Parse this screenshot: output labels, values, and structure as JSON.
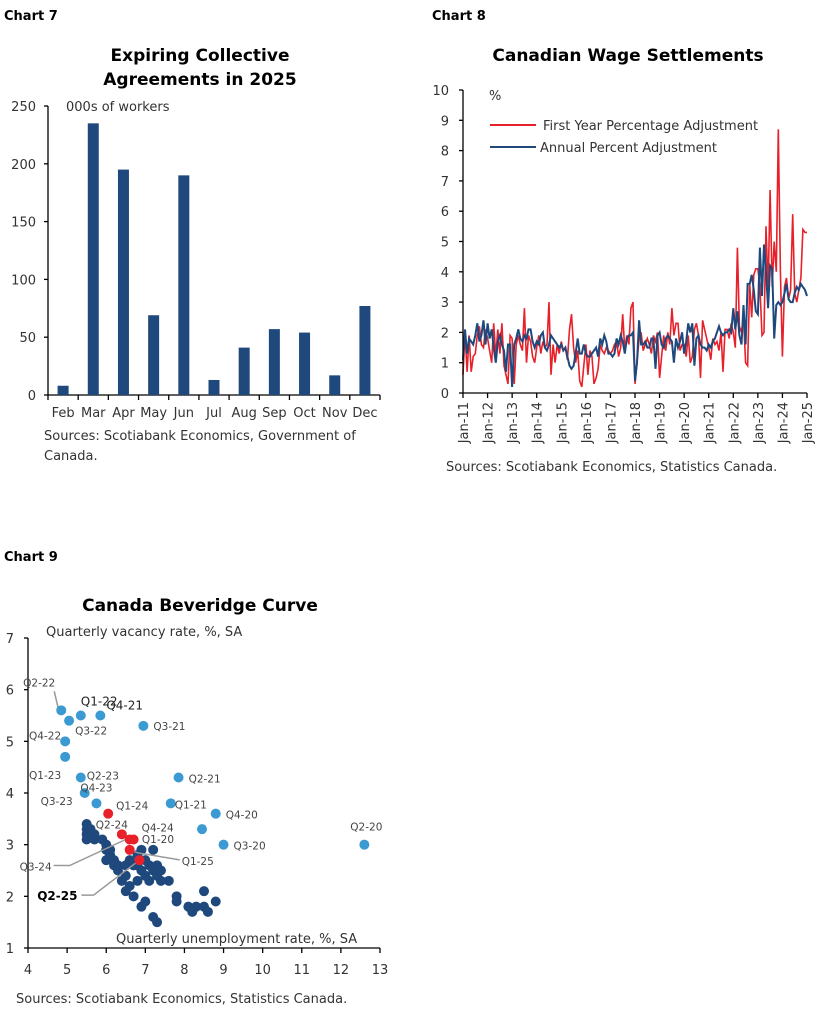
{
  "chart_data": [
    {
      "type": "bar",
      "label": "Chart 7",
      "title": [
        "Expiring Collective",
        "Agreements in 2025"
      ],
      "ylabel": "000s of workers",
      "categories": [
        "Feb",
        "Mar",
        "Apr",
        "May",
        "Jun",
        "Jul",
        "Aug",
        "Sep",
        "Oct",
        "Nov",
        "Dec"
      ],
      "values": [
        8,
        235,
        195,
        69,
        190,
        13,
        41,
        57,
        54,
        17,
        77
      ],
      "ylim": [
        0,
        250
      ],
      "yticks": [
        0,
        50,
        100,
        150,
        200,
        250
      ],
      "color": "#1f497d",
      "source": [
        "Sources: Scotiabank Economics, Government of",
        "Canada."
      ]
    },
    {
      "type": "line",
      "label": "Chart 8",
      "title": "Canadian Wage Settlements",
      "ylabel": "%",
      "ylim": [
        0,
        10
      ],
      "yticks": [
        0,
        1,
        2,
        3,
        4,
        5,
        6,
        7,
        8,
        9,
        10
      ],
      "x_start": "Jan-11",
      "x_frequency": "monthly",
      "xticks": [
        "Jan-11",
        "Jan-12",
        "Jan-13",
        "Jan-14",
        "Jan-15",
        "Jan-16",
        "Jan-17",
        "Jan-18",
        "Jan-19",
        "Jan-20",
        "Jan-21",
        "Jan-22",
        "Jan-23",
        "Jan-24",
        "Jan-25"
      ],
      "legend_position": "top-left",
      "series": [
        {
          "name": "First Year Percentage Adjustment",
          "color": "#e8202a",
          "values": [
            0.6,
            2.0,
            0.7,
            1.9,
            0.7,
            1.2,
            1.3,
            1.9,
            2.2,
            1.6,
            1.5,
            2.1,
            1.8,
            1.4,
            1.0,
            2.3,
            1.2,
            2.1,
            1.3,
            2.3,
            0.9,
            0.6,
            0.3,
            1.9,
            1.8,
            0.3,
            1.6,
            1.9,
            1.6,
            1.4,
            2.8,
            1.0,
            1.9,
            1.7,
            1.2,
            1.0,
            1.5,
            1.9,
            1.3,
            1.7,
            1.5,
            1.6,
            3.0,
            0.6,
            1.6,
            1.0,
            1.6,
            1.3,
            1.7,
            1.4,
            1.5,
            1.1,
            2.1,
            2.6,
            1.5,
            1.0,
            1.4,
            0.4,
            0.2,
            0.9,
            1.6,
            0.6,
            1.4,
            1.2,
            0.3,
            0.5,
            0.8,
            1.6,
            1.4,
            1.3,
            1.5,
            1.4,
            1.3,
            1.4,
            1.6,
            1.7,
            1.2,
            1.5,
            2.6,
            1.4,
            1.9,
            1.6,
            2.8,
            3.0,
            0.3,
            1.0,
            1.8,
            2.0,
            1.4,
            1.6,
            1.8,
            1.6,
            1.3,
            1.9,
            1.7,
            2.0,
            0.5,
            1.2,
            1.9,
            1.4,
            2.0,
            1.6,
            2.8,
            1.9,
            2.3,
            2.3,
            1.4,
            1.6,
            1.6,
            1.2,
            1.9,
            1.0,
            1.2,
            2.1,
            2.3,
            1.9,
            0.5,
            2.4,
            2.1,
            1.8,
            1.5,
            1.1,
            1.8,
            1.6,
            1.7,
            1.4,
            2.0,
            0.7,
            2.1,
            2.1,
            1.8,
            2.3,
            2.0,
            1.5,
            4.8,
            2.2,
            2.0,
            2.5,
            1.0,
            0.9,
            3.6,
            2.5,
            3.9,
            4.1,
            4.1,
            3.5,
            1.9,
            2.0,
            5.5,
            3.4,
            6.7,
            3.5,
            5.0,
            4.0,
            8.7,
            4.0,
            1.2,
            3.5,
            3.8,
            3.1,
            3.4,
            5.9,
            3.3,
            3.0,
            3.4,
            3.8,
            5.4,
            5.3,
            5.3
          ]
        },
        {
          "name": "Annual Percent Adjustment",
          "color": "#1f497d",
          "values": [
            1.1,
            2.1,
            1.3,
            1.8,
            1.7,
            1.6,
            1.9,
            2.3,
            1.7,
            1.9,
            2.4,
            1.6,
            2.3,
            1.8,
            2.1,
            1.5,
            1.0,
            1.7,
            1.9,
            1.6,
            1.4,
            0.7,
            1.6,
            1.6,
            0.2,
            1.6,
            1.8,
            2.1,
            1.8,
            1.7,
            1.9,
            1.8,
            2.1,
            2.1,
            1.7,
            1.5,
            1.7,
            1.6,
            1.9,
            2.0,
            1.5,
            1.4,
            1.6,
            1.9,
            1.8,
            1.7,
            1.6,
            1.5,
            1.6,
            1.4,
            1.5,
            1.2,
            0.9,
            0.8,
            0.9,
            1.3,
            1.8,
            1.3,
            1.3,
            1.6,
            1.3,
            1.2,
            1.2,
            1.3,
            1.4,
            1.5,
            1.2,
            1.8,
            1.6,
            1.9,
            1.7,
            1.3,
            1.3,
            1.2,
            1.3,
            1.8,
            1.6,
            1.9,
            1.7,
            1.3,
            1.8,
            1.9,
            1.9,
            2.0,
            0.4,
            1.0,
            2.4,
            1.6,
            1.6,
            1.7,
            1.5,
            1.5,
            1.8,
            1.8,
            0.8,
            1.9,
            2.0,
            1.6,
            1.5,
            1.8,
            1.9,
            1.8,
            1.7,
            1.0,
            1.8,
            1.5,
            1.7,
            2.0,
            1.3,
            1.7,
            2.3,
            2.0,
            2.3,
            0.9,
            1.8,
            1.9,
            1.6,
            1.5,
            1.5,
            1.4,
            1.6,
            1.5,
            1.7,
            1.8,
            2.0,
            2.2,
            2.0,
            1.9,
            2.0,
            2.0,
            2.1,
            2.0,
            2.8,
            2.1,
            2.7,
            1.9,
            1.6,
            2.9,
            1.6,
            3.6,
            3.6,
            3.9,
            3.4,
            2.7,
            2.6,
            4.8,
            3.2,
            4.9,
            4.0,
            2.8,
            4.2,
            4.1,
            1.8,
            2.9,
            3.0,
            2.9,
            3.0,
            3.3,
            3.6,
            3.1,
            3.0,
            3.0,
            3.3,
            3.5,
            3.4,
            3.6,
            3.5,
            3.4,
            3.2
          ]
        }
      ],
      "source": "Sources: Scotiabank Economics, Statistics Canada."
    },
    {
      "type": "scatter",
      "label": "Chart 9",
      "title": "Canada Beveridge Curve",
      "ylabel": "Quarterly vacancy rate, %, SA",
      "xlabel": "Quarterly unemployment rate, %, SA",
      "xlim": [
        4,
        13
      ],
      "ylim": [
        1,
        7
      ],
      "xticks": [
        4,
        5,
        6,
        7,
        8,
        9,
        10,
        11,
        12,
        13
      ],
      "yticks": [
        1,
        2,
        3,
        4,
        5,
        6,
        7
      ],
      "colors": {
        "history": "#1f497d",
        "2020-2023": "#3c9ad3",
        "2024-2025": "#e8202a"
      },
      "history_points": [
        [
          5.5,
          3.4
        ],
        [
          5.5,
          3.3
        ],
        [
          5.5,
          3.2
        ],
        [
          5.5,
          3.1
        ],
        [
          5.6,
          3.3
        ],
        [
          5.7,
          3.2
        ],
        [
          5.7,
          3.1
        ],
        [
          5.9,
          3.1
        ],
        [
          6.0,
          2.9
        ],
        [
          6.1,
          2.8
        ],
        [
          6.0,
          2.7
        ],
        [
          6.2,
          2.7
        ],
        [
          6.3,
          2.6
        ],
        [
          6.3,
          2.5
        ],
        [
          6.2,
          2.6
        ],
        [
          6.5,
          2.6
        ],
        [
          6.5,
          2.4
        ],
        [
          6.6,
          2.7
        ],
        [
          6.7,
          2.6
        ],
        [
          6.8,
          2.8
        ],
        [
          6.8,
          2.6
        ],
        [
          6.9,
          2.5
        ],
        [
          7.0,
          2.7
        ],
        [
          7.0,
          2.4
        ],
        [
          7.1,
          2.3
        ],
        [
          7.2,
          2.5
        ],
        [
          7.3,
          2.6
        ],
        [
          7.3,
          2.4
        ],
        [
          7.4,
          2.3
        ],
        [
          7.4,
          2.5
        ],
        [
          7.1,
          2.6
        ],
        [
          6.8,
          2.3
        ],
        [
          6.6,
          2.2
        ],
        [
          6.4,
          2.3
        ],
        [
          6.5,
          2.1
        ],
        [
          6.7,
          2.0
        ],
        [
          6.9,
          1.8
        ],
        [
          7.0,
          1.9
        ],
        [
          7.6,
          2.3
        ],
        [
          7.8,
          2.0
        ],
        [
          7.8,
          1.9
        ],
        [
          8.1,
          1.8
        ],
        [
          8.3,
          1.8
        ],
        [
          8.5,
          1.8
        ],
        [
          8.6,
          1.7
        ],
        [
          8.8,
          1.9
        ],
        [
          8.5,
          2.1
        ],
        [
          8.2,
          1.7
        ],
        [
          7.2,
          1.6
        ],
        [
          7.3,
          1.5
        ],
        [
          6.0,
          3.0
        ],
        [
          6.1,
          2.9
        ],
        [
          6.9,
          2.9
        ],
        [
          7.2,
          2.9
        ]
      ],
      "labeled_points": [
        {
          "label": "Q1-20",
          "x": 8.45,
          "y": 3.3,
          "group": "2020-2023"
        },
        {
          "label": "Q2-20",
          "x": 12.6,
          "y": 3.0,
          "group": "2020-2023"
        },
        {
          "label": "Q3-20",
          "x": 9.0,
          "y": 3.0,
          "group": "2020-2023"
        },
        {
          "label": "Q4-20",
          "x": 8.8,
          "y": 3.6,
          "group": "2020-2023"
        },
        {
          "label": "Q1-21",
          "x": 7.65,
          "y": 3.8,
          "group": "2020-2023"
        },
        {
          "label": "Q2-21",
          "x": 7.85,
          "y": 4.3,
          "group": "2020-2023"
        },
        {
          "label": "Q3-21",
          "x": 6.95,
          "y": 5.3,
          "group": "2020-2023"
        },
        {
          "label": "Q4-21",
          "x": 5.85,
          "y": 5.5,
          "group": "2020-2023"
        },
        {
          "label": "Q1-22",
          "x": 5.35,
          "y": 5.5,
          "group": "2020-2023"
        },
        {
          "label": "Q2-22",
          "x": 4.85,
          "y": 5.6,
          "group": "2020-2023"
        },
        {
          "label": "Q3-22",
          "x": 5.05,
          "y": 5.4,
          "group": "2020-2023"
        },
        {
          "label": "Q4-22",
          "x": 4.95,
          "y": 5.0,
          "group": "2020-2023"
        },
        {
          "label": "Q1-23",
          "x": 4.95,
          "y": 4.7,
          "group": "2020-2023"
        },
        {
          "label": "Q2-23",
          "x": 5.35,
          "y": 4.3,
          "group": "2020-2023"
        },
        {
          "label": "Q3-23",
          "x": 5.45,
          "y": 4.0,
          "group": "2020-2023"
        },
        {
          "label": "Q4-23",
          "x": 5.75,
          "y": 3.8,
          "group": "2020-2023"
        },
        {
          "label": "Q1-24",
          "x": 6.05,
          "y": 3.6,
          "group": "2024-2025"
        },
        {
          "label": "Q2-24",
          "x": 6.4,
          "y": 3.2,
          "group": "2024-2025"
        },
        {
          "label": "Q3-24",
          "x": 6.6,
          "y": 3.1,
          "group": "2024-2025"
        },
        {
          "label": "Q4-24",
          "x": 6.7,
          "y": 3.1,
          "group": "2024-2025"
        },
        {
          "label": "Q1-25",
          "x": 6.6,
          "y": 2.9,
          "group": "2024-2025"
        },
        {
          "label": "Q2-25",
          "x": 6.85,
          "y": 2.7,
          "group": "2024-2025"
        }
      ],
      "source": "Sources: Scotiabank Economics, Statistics Canada."
    }
  ]
}
